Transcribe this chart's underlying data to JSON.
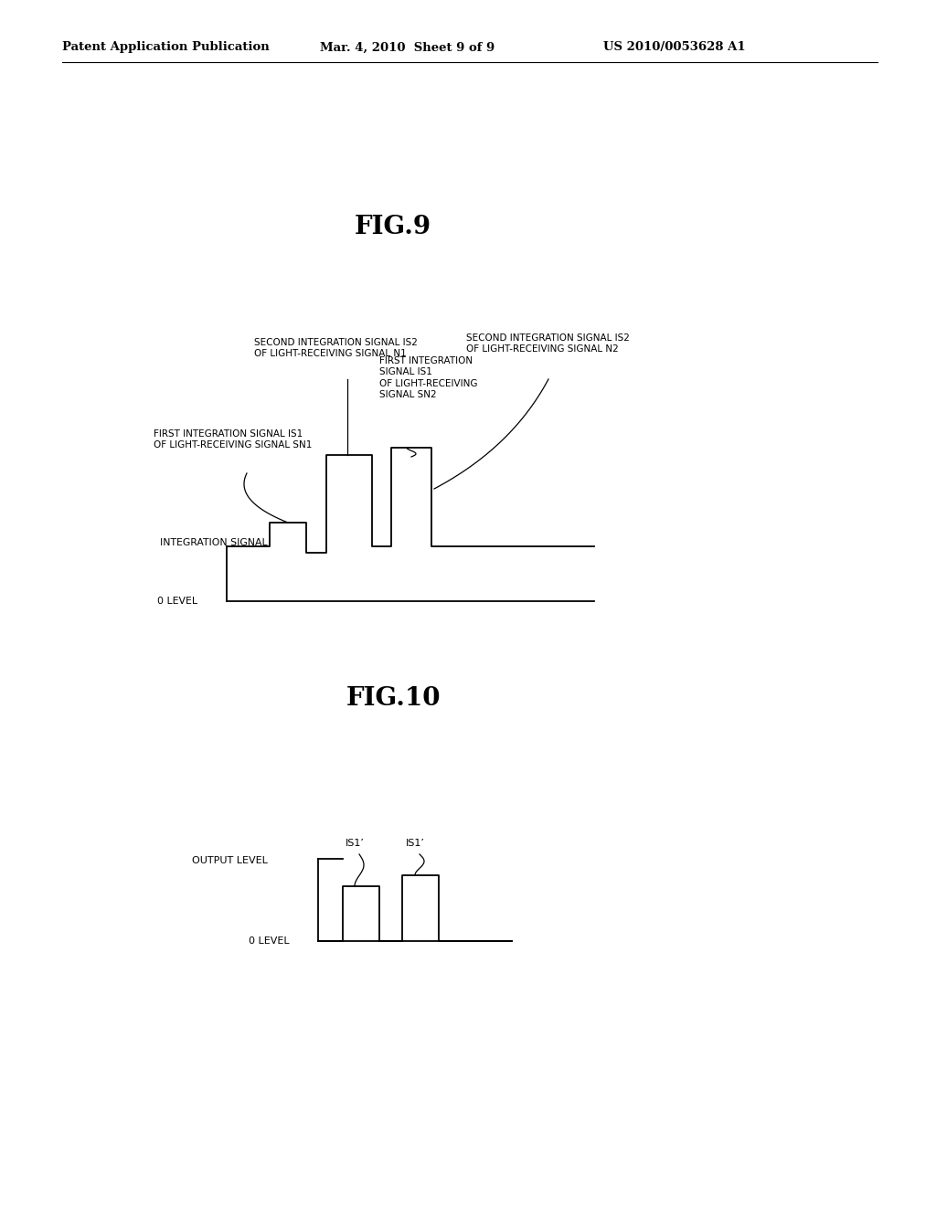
{
  "bg_color": "#ffffff",
  "header_left": "Patent Application Publication",
  "header_center": "Mar. 4, 2010  Sheet 9 of 9",
  "header_right": "US 2010/0053628 A1",
  "fig9_title": "FIG.9",
  "fig10_title": "FIG.10",
  "fig9_integration_signal_label": "INTEGRATION SIGNAL",
  "fig9_0level_label": "0 LEVEL",
  "fig9_label1": "FIRST INTEGRATION SIGNAL IS1\nOF LIGHT-RECEIVING SIGNAL SN1",
  "fig9_label2": "SECOND INTEGRATION SIGNAL IS2\nOF LIGHT-RECEIVING SIGNAL N1",
  "fig9_label3": "FIRST INTEGRATION\nSIGNAL IS1\nOF LIGHT-RECEIVING\nSIGNAL SN2",
  "fig9_label4": "SECOND INTEGRATION SIGNAL IS2\nOF LIGHT-RECEIVING SIGNAL N2",
  "fig10_output_level_label": "OUTPUT LEVEL",
  "fig10_0level_label": "0 LEVEL",
  "fig10_label1": "IS1’",
  "fig10_label2": "IS1’"
}
